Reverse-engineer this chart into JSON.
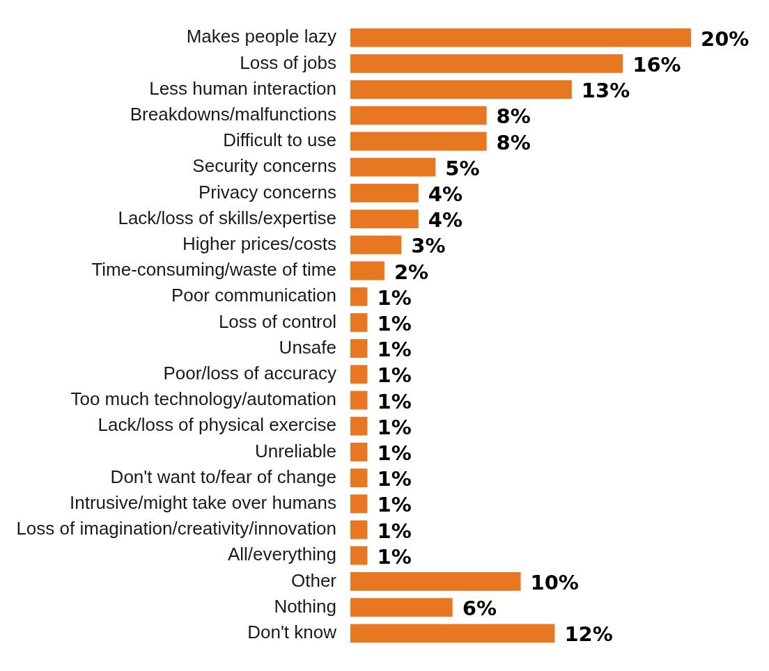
{
  "chart_data": {
    "type": "bar",
    "orientation": "horizontal",
    "categories": [
      "Makes people lazy",
      "Loss of jobs",
      "Less human interaction",
      "Breakdowns/malfunctions",
      "Difficult to use",
      "Security concerns",
      "Privacy concerns",
      "Lack/loss of skills/expertise",
      "Higher prices/costs",
      "Time-consuming/waste of time",
      "Poor communication",
      "Loss of control",
      "Unsafe",
      "Poor/loss of accuracy",
      "Too much technology/automation",
      "Lack/loss of physical exercise",
      "Unreliable",
      "Don't want to/fear of change",
      "Intrusive/might take over humans",
      "Loss of imagination/creativity/innovation",
      "All/everything",
      "Other",
      "Nothing",
      "Don't know"
    ],
    "values": [
      20,
      16,
      13,
      8,
      8,
      5,
      4,
      4,
      3,
      2,
      1,
      1,
      1,
      1,
      1,
      1,
      1,
      1,
      1,
      1,
      1,
      10,
      6,
      12
    ],
    "value_labels": [
      "20%",
      "16%",
      "13%",
      "8%",
      "8%",
      "5%",
      "4%",
      "4%",
      "3%",
      "2%",
      "1%",
      "1%",
      "1%",
      "1%",
      "1%",
      "1%",
      "1%",
      "1%",
      "1%",
      "1%",
      "1%",
      "10%",
      "6%",
      "12%"
    ],
    "color": "#e87722",
    "legend": false
  }
}
